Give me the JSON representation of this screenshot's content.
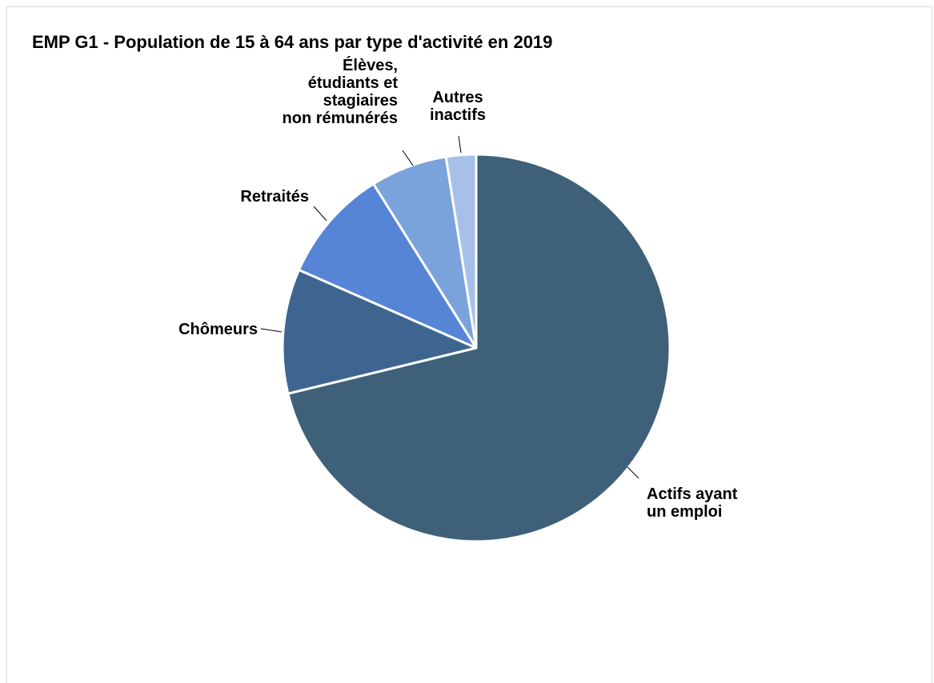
{
  "chart_data": {
    "type": "pie",
    "title": "EMP G1 - Population de 15 à 64 ans par type d'activité en 2019",
    "start_angle_deg": 0,
    "direction": "clockwise",
    "slices": [
      {
        "label": "Actifs ayant un emploi",
        "label_lines": [
          "Actifs ayant",
          "un emploi"
        ],
        "value": 71.2,
        "color": "#3e6079"
      },
      {
        "label": "Chômeurs",
        "label_lines": [
          "Chômeurs"
        ],
        "value": 10.4,
        "color": "#3d6590"
      },
      {
        "label": "Retraités",
        "label_lines": [
          "Retraités"
        ],
        "value": 9.5,
        "color": "#5585d4"
      },
      {
        "label": "Élèves, étudiants et stagiaires non rémunérés",
        "label_lines": [
          "Élèves,",
          "étudiants et",
          "stagiaires",
          "non rémunérés"
        ],
        "value": 6.4,
        "color": "#7aa3dc"
      },
      {
        "label": "Autres inactifs",
        "label_lines": [
          "Autres",
          "inactifs"
        ],
        "value": 2.5,
        "color": "#a6c0e9"
      }
    ]
  }
}
